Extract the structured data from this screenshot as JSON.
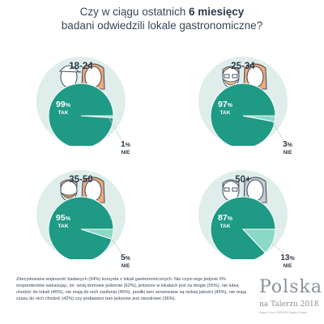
{
  "title": {
    "line1_prefix": "Czy w ciągu ostatnich",
    "line1_bold": "6 miesięcy",
    "line2": "badani odwiedzili lokale gastronomiczne?"
  },
  "colors": {
    "tak": "#1e9a85",
    "nie": "#8ad8c6",
    "ring": "#dfeeea",
    "text": "#2d3a4a",
    "icon_line": "#4a5566"
  },
  "chart_data": {
    "type": "pie",
    "title": "Czy w ciągu ostatnich 6 miesięcy badani odwiedzili lokale gastronomiczne?",
    "categories": [
      "TAK",
      "NIE"
    ],
    "groups": [
      {
        "label": "18-24",
        "tak": 99,
        "nie": 1
      },
      {
        "label": "25-34",
        "tak": 97,
        "nie": 3
      },
      {
        "label": "35-50",
        "tak": 95,
        "nie": 5
      },
      {
        "label": "50+",
        "tak": 87,
        "nie": 13
      }
    ],
    "unit": "%",
    "labels": {
      "tak": "TAK",
      "nie": "NIE"
    }
  },
  "note": "Zdecydowana większość badanych (94%) korzysta z lokali gastronomicznych. Nie czyni tego jedynie 6% respondentów wskazując, że: wolą domowe jedzenie (62%), jedzenie w lokalach jest za drogie (55%), nie lubią chodzić do lokali (46%), nie mają do nich zaufania (45%), posiłki tam serwowane są niskiej jakości (45%), nie mają czasu do nich chodzić (42%) czy podawano tam jedzenie jest niezdrowe (36%).",
  "logo": {
    "main": "Polska",
    "sub": "na Talerzu 2018",
    "tiny": "Raport Food SERVICE Gastro Polska"
  }
}
